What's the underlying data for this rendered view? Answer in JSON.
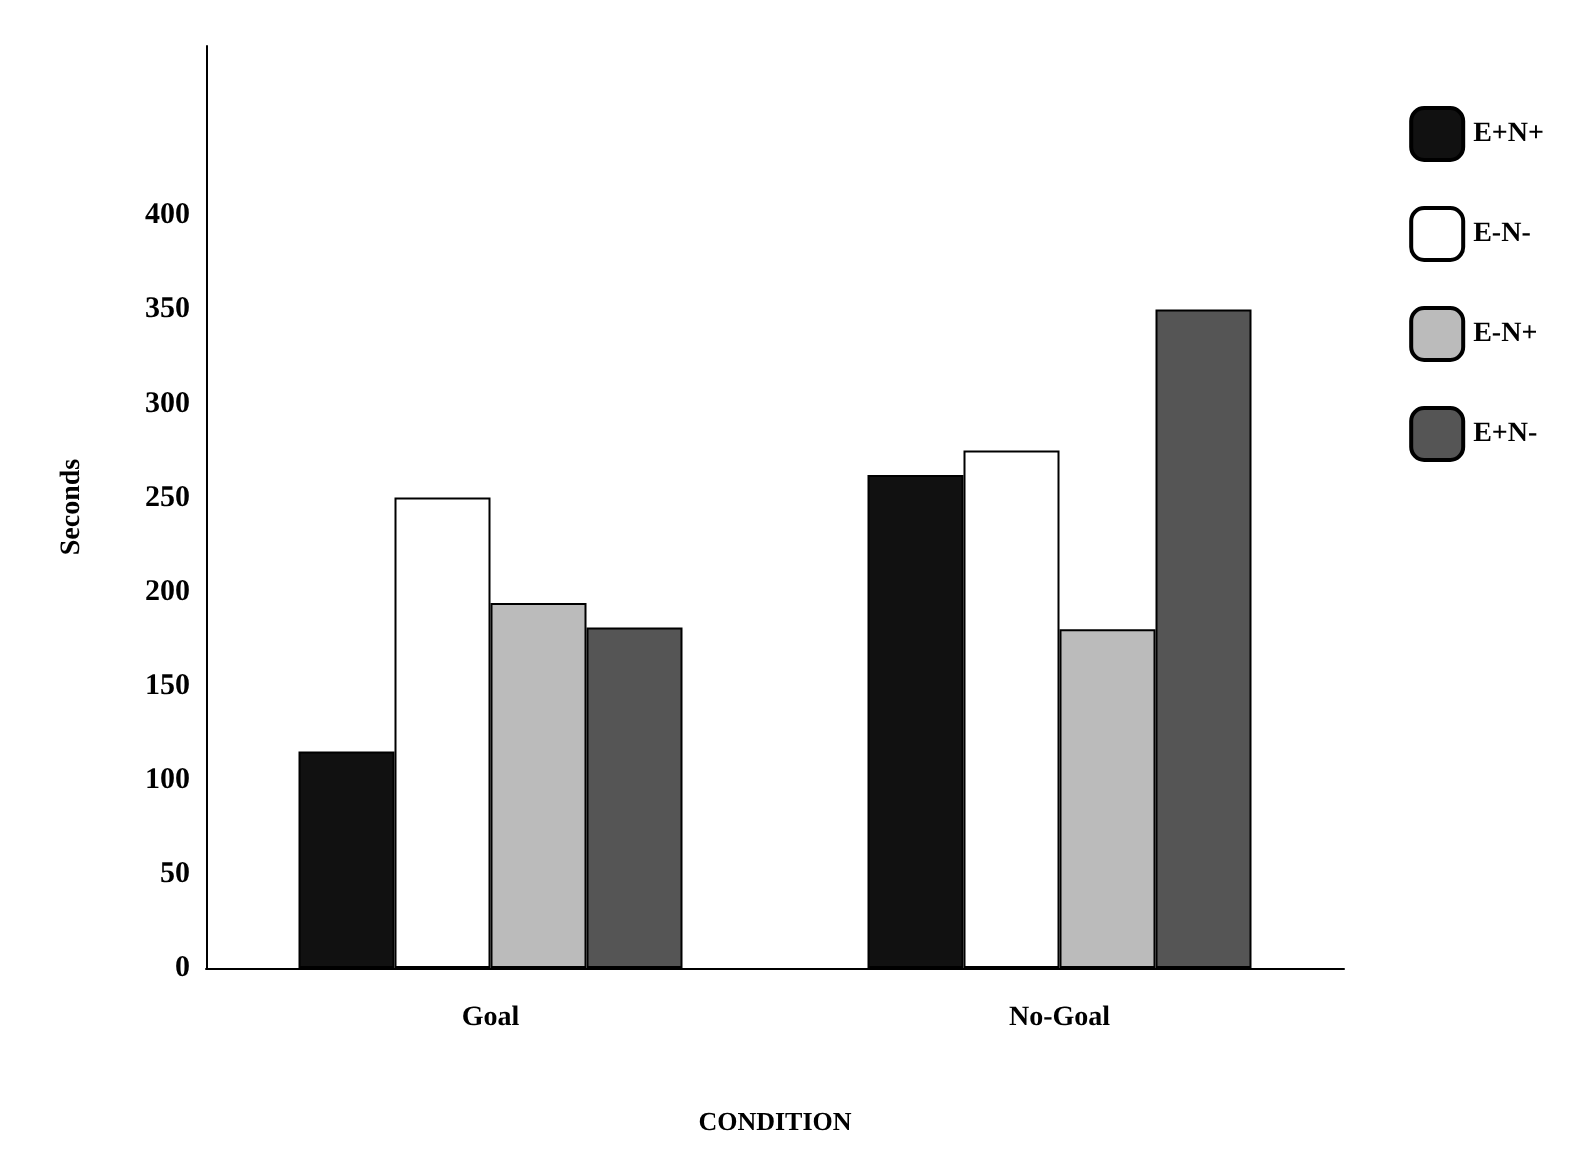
{
  "chart_data": {
    "type": "bar",
    "xlabel": "CONDITION",
    "ylabel": "Seconds",
    "categories": [
      "Goal",
      "No-Goal"
    ],
    "series": [
      {
        "name": "E+N+",
        "color": "#111111",
        "values": [
          115,
          262
        ]
      },
      {
        "name": "E-N-",
        "color": "#ffffff",
        "values": [
          250,
          275
        ]
      },
      {
        "name": "E-N+",
        "color": "#bbbbbb",
        "values": [
          194,
          180
        ]
      },
      {
        "name": "E+N-",
        "color": "#555555",
        "values": [
          181,
          350
        ]
      }
    ],
    "ylim": [
      0,
      490
    ],
    "yticks": [
      0,
      50,
      100,
      150,
      200,
      250,
      300,
      350,
      400
    ],
    "grid": false,
    "legend": "top right"
  }
}
